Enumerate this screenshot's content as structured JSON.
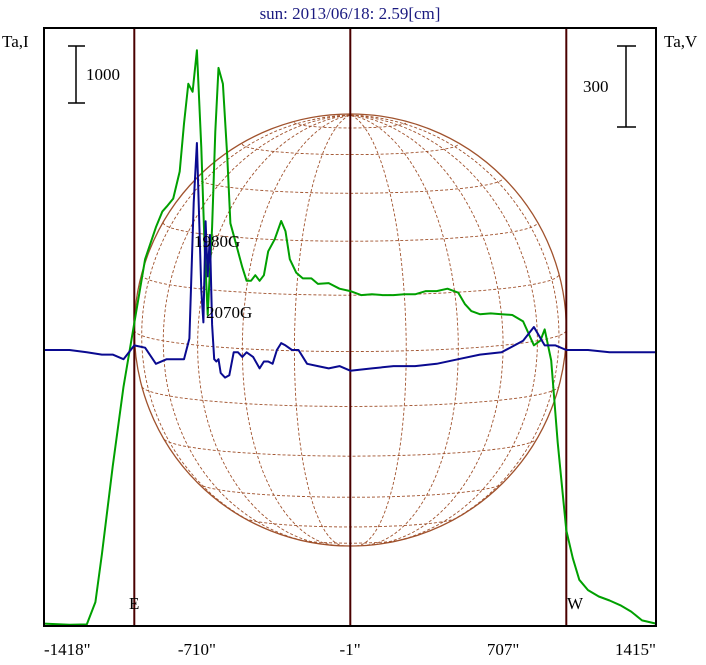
{
  "chart_data": {
    "type": "line",
    "title": "sun: 2013/06/18: 2.59[cm]",
    "left_axis_label": "Ta,I",
    "right_axis_label": "Ta,V",
    "left_scale_bar_label": "1000",
    "right_scale_bar_label": "300",
    "x_tick_labels": [
      "-1418\"",
      "-710\"",
      "-1\"",
      "707\"",
      "1415\""
    ],
    "x_ticks": [
      -1418,
      -710,
      -1,
      707,
      1415
    ],
    "xlim": [
      -1418,
      1415
    ],
    "limb_labels": {
      "east": "E",
      "west": "W"
    },
    "limb_positions": [
      -1000,
      1000
    ],
    "center_line": 0,
    "annotations": [
      {
        "text": "1980G",
        "series": "I",
        "x": -560
      },
      {
        "text": "2070G",
        "series": "V",
        "x": -500
      }
    ],
    "colors": {
      "title": "#1a1a80",
      "I_series": "#00a000",
      "V_series": "#0a0a90",
      "solar_disk": "#a0522d",
      "vertical_lines": "#4a0000"
    },
    "series": [
      {
        "name": "I",
        "axis": "left",
        "ylim": [
          0,
          7500
        ],
        "x": [
          -1418,
          -1300,
          -1220,
          -1180,
          -1150,
          -1100,
          -1050,
          -1000,
          -950,
          -900,
          -870,
          -850,
          -820,
          -790,
          -770,
          -750,
          -730,
          -710,
          -690,
          -675,
          -660,
          -640,
          -625,
          -610,
          -590,
          -570,
          -555,
          -540,
          -520,
          -500,
          -480,
          -460,
          -440,
          -420,
          -400,
          -380,
          -350,
          -320,
          -300,
          -280,
          -250,
          -220,
          -180,
          -150,
          -100,
          -50,
          0,
          50,
          100,
          150,
          200,
          250,
          300,
          350,
          400,
          450,
          500,
          530,
          560,
          600,
          650,
          700,
          750,
          800,
          850,
          880,
          900,
          930,
          960,
          1000,
          1030,
          1060,
          1100,
          1150,
          1200,
          1250,
          1300,
          1350,
          1415
        ],
        "values": [
          30,
          15,
          20,
          300,
          900,
          2000,
          3000,
          3800,
          4600,
          5000,
          5200,
          5260,
          5360,
          5700,
          6300,
          6800,
          6700,
          7220,
          6000,
          4800,
          3900,
          5000,
          6200,
          7000,
          6800,
          5900,
          5050,
          4900,
          4700,
          4500,
          4330,
          4330,
          4400,
          4330,
          4400,
          4700,
          4850,
          5080,
          4950,
          4600,
          4430,
          4360,
          4360,
          4290,
          4300,
          4230,
          4200,
          4150,
          4160,
          4150,
          4150,
          4160,
          4160,
          4200,
          4200,
          4230,
          4180,
          4040,
          3950,
          3910,
          3920,
          3910,
          3900,
          3820,
          3520,
          3580,
          3720,
          3330,
          2300,
          1200,
          850,
          580,
          450,
          370,
          320,
          260,
          180,
          70,
          30
        ]
      },
      {
        "name": "V",
        "axis": "right",
        "ylim": [
          -600,
          700
        ],
        "x": [
          -1418,
          -1300,
          -1220,
          -1150,
          -1100,
          -1050,
          -1000,
          -950,
          -900,
          -850,
          -800,
          -770,
          -745,
          -725,
          -710,
          -690,
          -680,
          -670,
          -660,
          -650,
          -640,
          -630,
          -620,
          -610,
          -600,
          -580,
          -560,
          -540,
          -520,
          -500,
          -480,
          -450,
          -420,
          -400,
          -380,
          -360,
          -340,
          -320,
          -300,
          -270,
          -240,
          -200,
          -150,
          -100,
          -50,
          0,
          100,
          200,
          300,
          400,
          500,
          600,
          700,
          800,
          850,
          900,
          950,
          1000,
          1050,
          1100,
          1200,
          1300,
          1415
        ],
        "values": [
          0,
          0,
          -5,
          -10,
          -10,
          -20,
          10,
          5,
          -30,
          -20,
          -20,
          -20,
          25,
          320,
          450,
          130,
          60,
          280,
          160,
          250,
          55,
          -20,
          -25,
          -20,
          -50,
          -60,
          -55,
          -5,
          -5,
          -15,
          -5,
          -15,
          -40,
          -25,
          -25,
          -30,
          0,
          15,
          10,
          0,
          0,
          -30,
          -35,
          -40,
          -35,
          -45,
          -40,
          -35,
          -35,
          -30,
          -20,
          -10,
          -5,
          20,
          50,
          10,
          10,
          0,
          0,
          0,
          -5,
          -5,
          -5
        ]
      }
    ]
  }
}
